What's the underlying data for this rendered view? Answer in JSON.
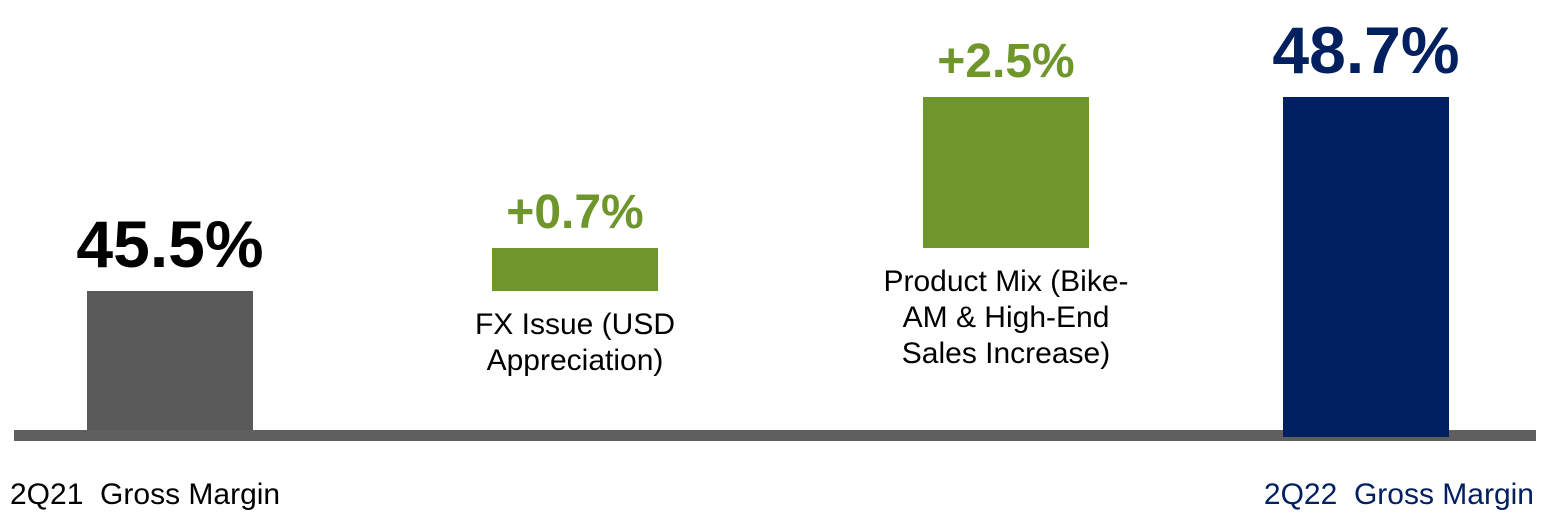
{
  "chart_data": {
    "type": "waterfall",
    "categories": [
      "2Q21  Gross Margin",
      "FX Issue (USD Appreciation)",
      "Product Mix (Bike-AM & High-End Sales Increase)",
      "2Q22  Gross Margin"
    ],
    "values": [
      45.5,
      0.7,
      2.5,
      48.7
    ],
    "value_labels": [
      "45.5%",
      "+0.7%",
      "+2.5%",
      "48.7%"
    ],
    "measures": [
      "absolute",
      "relative",
      "relative",
      "total"
    ],
    "colors": [
      "#595959",
      "#6f962b",
      "#6f962b",
      "#002060"
    ],
    "label_colors": [
      "#000000",
      "#6f962b",
      "#6f962b",
      "#002060"
    ],
    "ylim": [
      43.2,
      48.7
    ]
  }
}
